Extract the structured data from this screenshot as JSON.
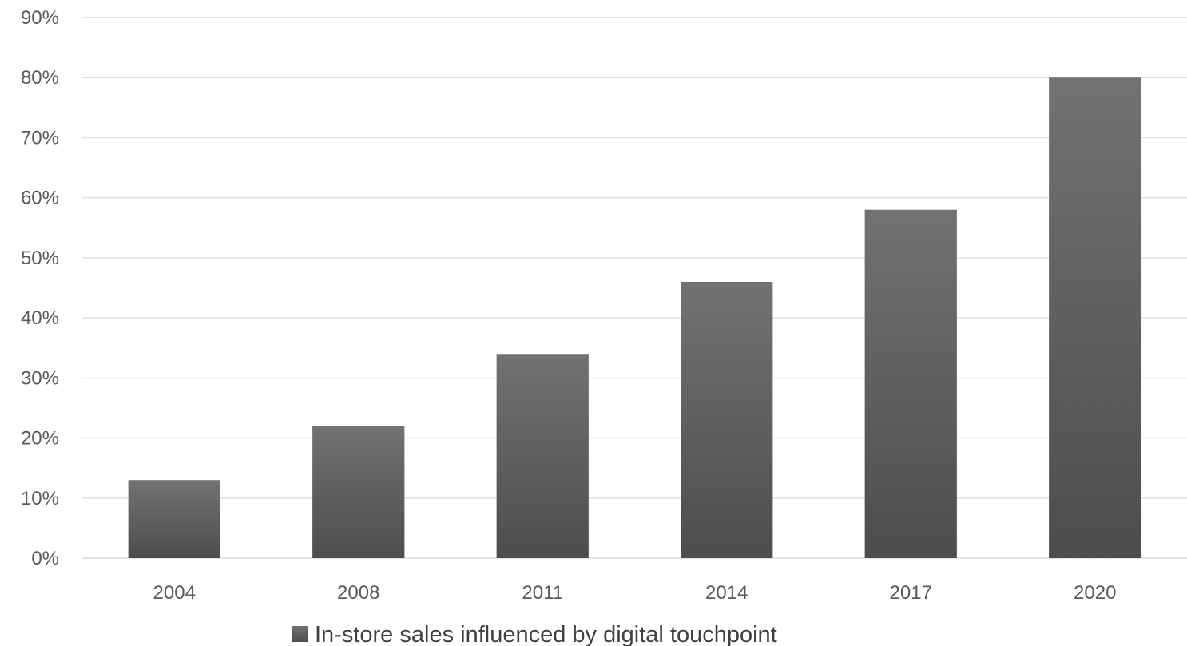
{
  "chart_data": {
    "type": "bar",
    "title": "",
    "xlabel": "",
    "ylabel": "",
    "categories": [
      "2004",
      "2008",
      "2011",
      "2014",
      "2017",
      "2020"
    ],
    "series": [
      {
        "name": "In-store sales influenced by digital touchpoint",
        "values": [
          0.13,
          0.22,
          0.34,
          0.46,
          0.58,
          0.8
        ],
        "color": "#5a5a5a"
      }
    ],
    "ylim": [
      0,
      0.9
    ],
    "yticks": [
      {
        "value": 0,
        "label": "0%"
      },
      {
        "value": 0.1,
        "label": "10%"
      },
      {
        "value": 0.2,
        "label": "20%"
      },
      {
        "value": 0.3,
        "label": "30%"
      },
      {
        "value": 0.4,
        "label": "40%"
      },
      {
        "value": 0.5,
        "label": "50%"
      },
      {
        "value": 0.6,
        "label": "60%"
      },
      {
        "value": 0.7,
        "label": "70%"
      },
      {
        "value": 0.8,
        "label": "80%"
      },
      {
        "value": 0.9,
        "label": "90%"
      }
    ],
    "grid": true,
    "legend_position": "bottom-center",
    "colors": {
      "bar_top": "#727272",
      "bar_bottom": "#4d4d4d",
      "grid": "#e0e0e0",
      "axis": "#d9d9d9"
    }
  }
}
